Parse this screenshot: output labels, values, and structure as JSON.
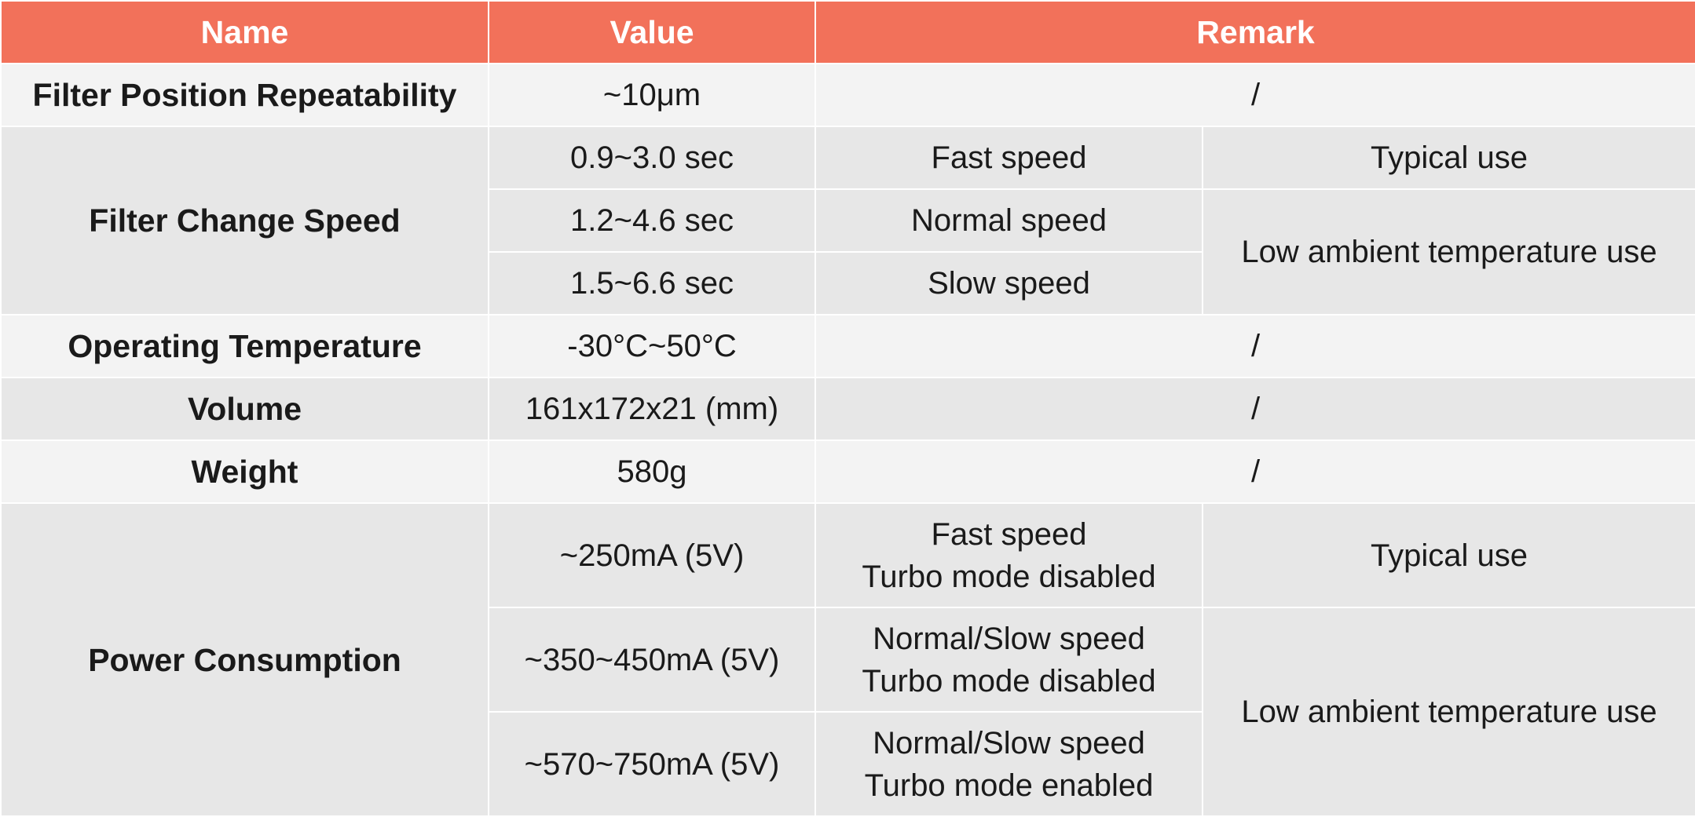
{
  "headers": {
    "name": "Name",
    "value": "Value",
    "remark": "Remark"
  },
  "rows": {
    "repeatability": {
      "name": "Filter Position Repeatability",
      "value": "~10μm",
      "remark": "/"
    },
    "change_speed": {
      "name": "Filter Change Speed",
      "entries": [
        {
          "value": "0.9~3.0 sec",
          "mode": "Fast speed"
        },
        {
          "value": "1.2~4.6 sec",
          "mode": "Normal speed"
        },
        {
          "value": "1.5~6.6 sec",
          "mode": "Slow speed"
        }
      ],
      "use_typical": "Typical use",
      "use_low_temp": "Low ambient temperature use"
    },
    "operating_temperature": {
      "name": "Operating Temperature",
      "value": "-30°C~50°C",
      "remark": "/"
    },
    "volume": {
      "name": "Volume",
      "value": "161x172x21 (mm)",
      "remark": "/"
    },
    "weight": {
      "name": "Weight",
      "value": "580g",
      "remark": "/"
    },
    "power": {
      "name": "Power Consumption",
      "entries": [
        {
          "value": "~250mA (5V)",
          "mode_line1": "Fast speed",
          "mode_line2": "Turbo mode disabled"
        },
        {
          "value": "~350~450mA (5V)",
          "mode_line1": "Normal/Slow speed",
          "mode_line2": "Turbo mode disabled"
        },
        {
          "value": "~570~750mA (5V)",
          "mode_line1": "Normal/Slow speed",
          "mode_line2": "Turbo mode enabled"
        }
      ],
      "use_typical": "Typical use",
      "use_low_temp": "Low ambient temperature use"
    }
  },
  "colors": {
    "header_bg": "#f2715a",
    "header_text": "#ffffff",
    "row_light": "#f3f3f3",
    "row_dark": "#e7e7e7",
    "text": "#1a1a1a"
  }
}
